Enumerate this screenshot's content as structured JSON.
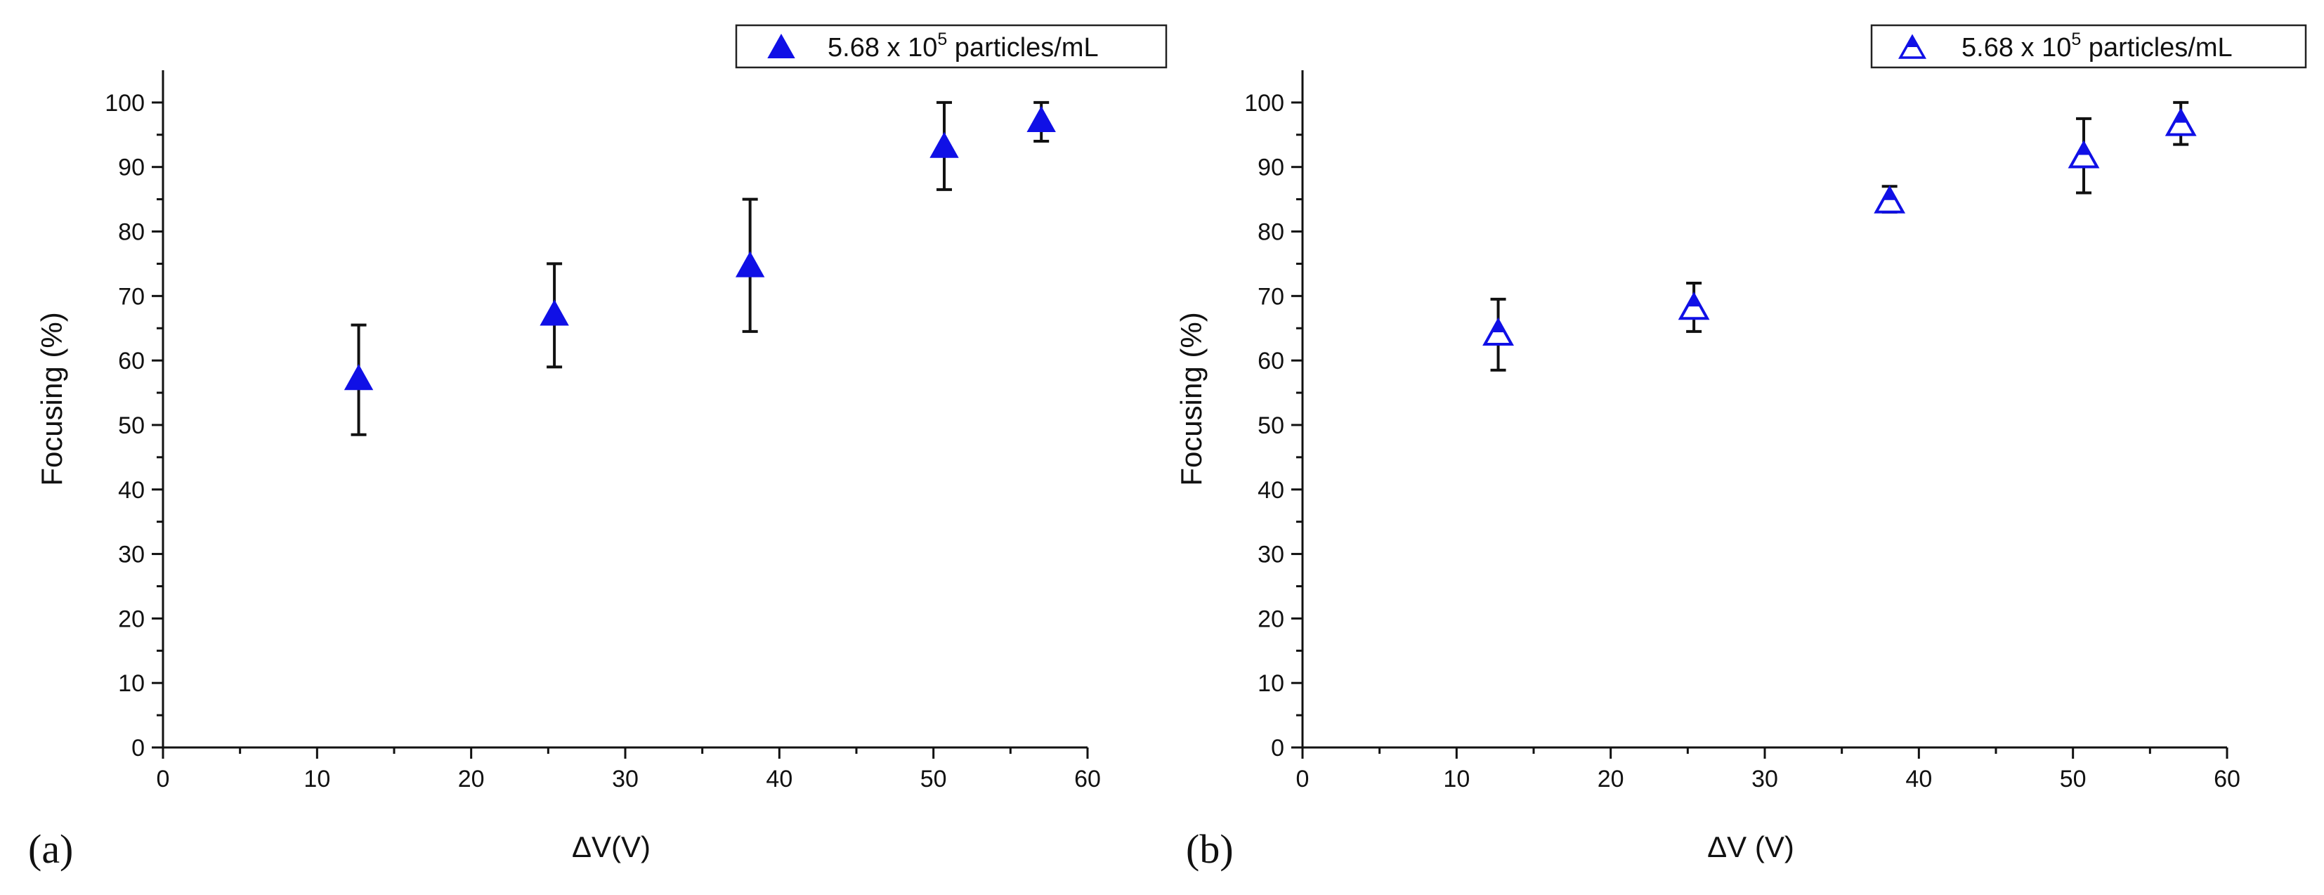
{
  "colors": {
    "marker": "#1010e6",
    "axis": "#111111",
    "errorbar": "#111111",
    "background": "#ffffff"
  },
  "chart_data": [
    {
      "id": "a",
      "type": "scatter",
      "panel_label": "(a)",
      "xlabel": "ΔV(V)",
      "ylabel": "Focusing (%)",
      "xlim": [
        0,
        60
      ],
      "ylim": [
        0,
        105
      ],
      "xticks": [
        0,
        10,
        20,
        30,
        40,
        50,
        60
      ],
      "yticks": [
        0,
        10,
        20,
        30,
        40,
        50,
        60,
        70,
        80,
        90,
        100
      ],
      "marker": "filled-triangle",
      "legend": {
        "position": "top-right",
        "label_prefix": "5.68 x 10",
        "label_exp": "5",
        "label_suffix": " particles/mL"
      },
      "series": [
        {
          "name": "5.68 x 10^5 particles/mL",
          "x": [
            12.7,
            25.4,
            38.1,
            50.7,
            57.0
          ],
          "y": [
            57,
            67,
            74.5,
            93,
            97
          ],
          "err_low": [
            48.5,
            59,
            64.5,
            86.5,
            94
          ],
          "err_high": [
            65.5,
            75,
            85,
            100,
            100
          ]
        }
      ]
    },
    {
      "id": "b",
      "type": "scatter",
      "panel_label": "(b)",
      "xlabel": "ΔV (V)",
      "ylabel": "Focusing (%)",
      "xlim": [
        0,
        60
      ],
      "ylim": [
        0,
        105
      ],
      "xticks": [
        0,
        10,
        20,
        30,
        40,
        50,
        60
      ],
      "yticks": [
        0,
        10,
        20,
        30,
        40,
        50,
        60,
        70,
        80,
        90,
        100
      ],
      "marker": "half-filled-triangle",
      "legend": {
        "position": "top-right",
        "label_prefix": "5.68 x 10",
        "label_exp": "5",
        "label_suffix": " particles/mL"
      },
      "series": [
        {
          "name": "5.68 x 10^5 particles/mL",
          "x": [
            12.7,
            25.4,
            38.1,
            50.7,
            57.0
          ],
          "y": [
            64,
            68,
            84.5,
            91.5,
            96.5
          ],
          "err_low": [
            58.5,
            64.5,
            83,
            86,
            93.5
          ],
          "err_high": [
            69.5,
            72,
            87,
            97.5,
            100
          ]
        }
      ]
    }
  ]
}
